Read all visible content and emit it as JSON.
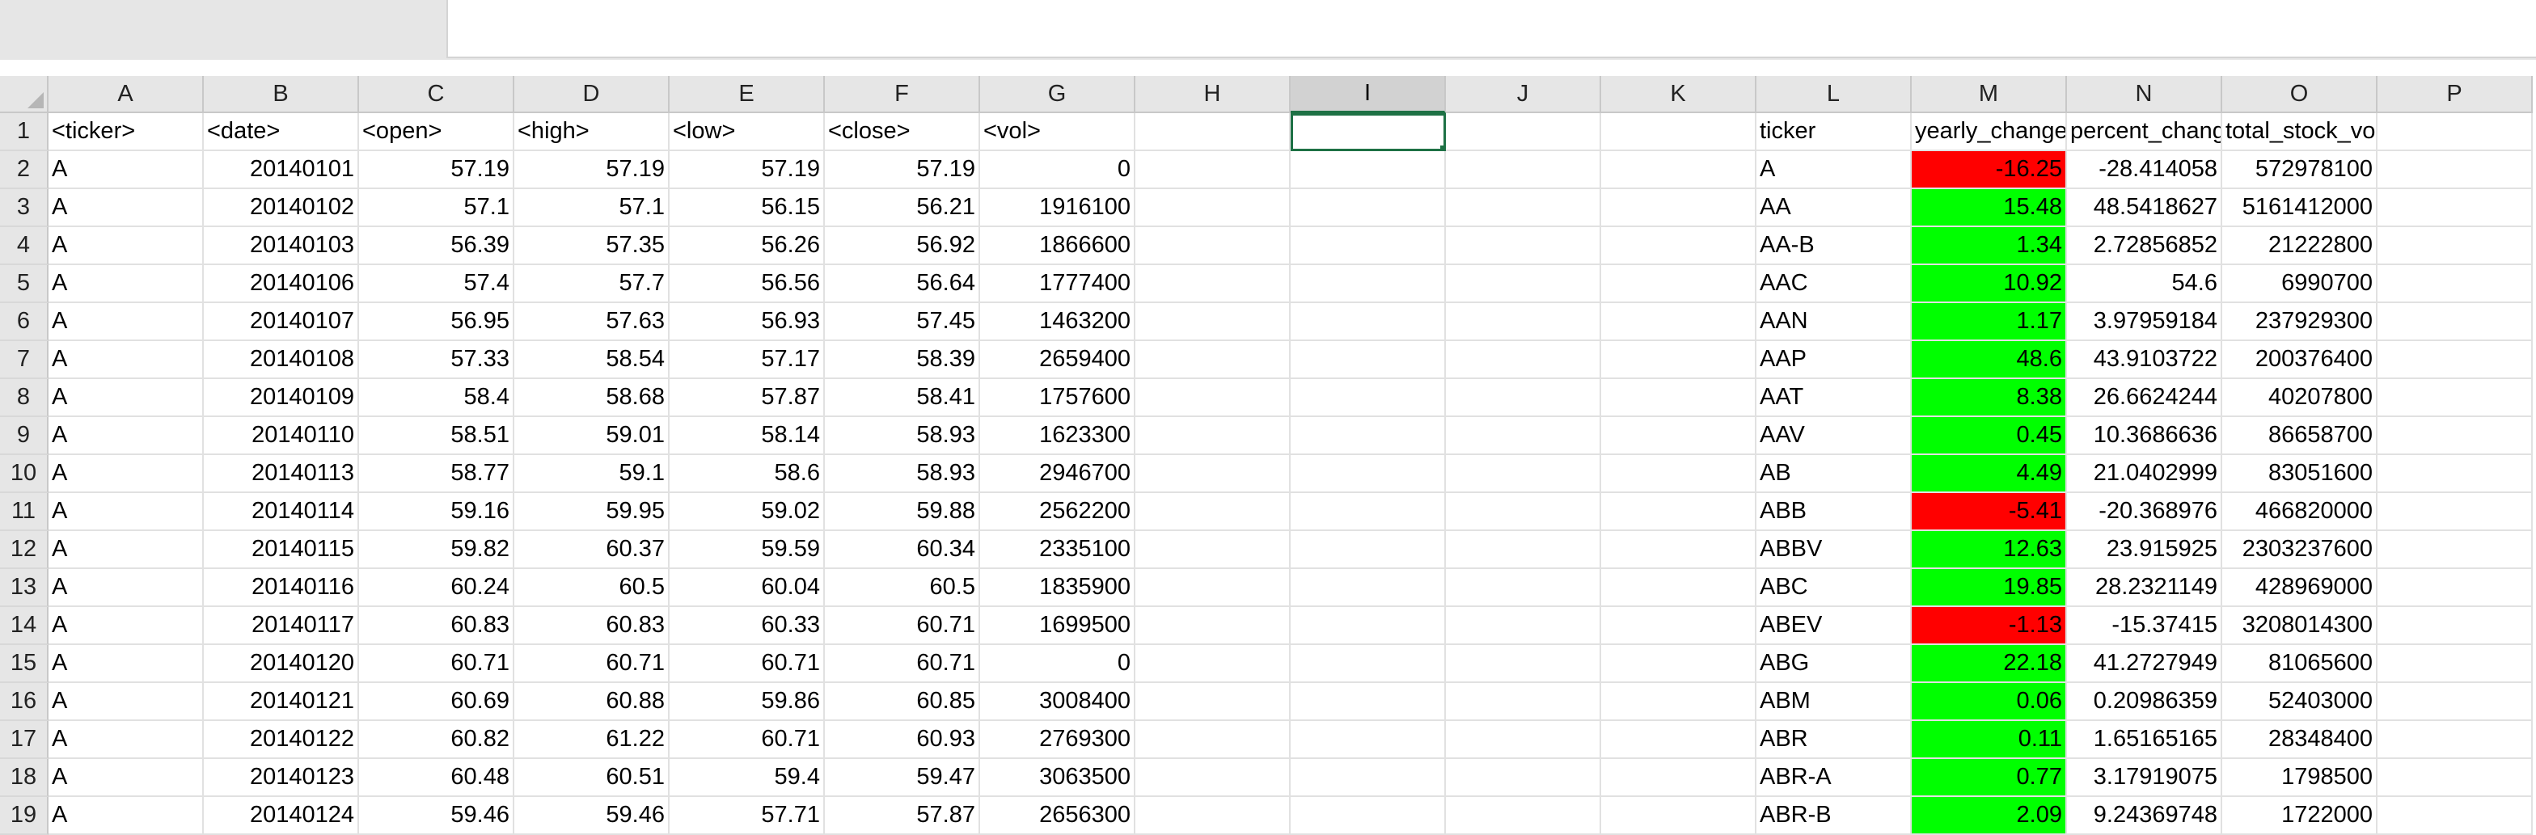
{
  "columns": [
    "A",
    "B",
    "C",
    "D",
    "E",
    "F",
    "G",
    "H",
    "I",
    "J",
    "K",
    "L",
    "M",
    "N",
    "O",
    "P"
  ],
  "selected_column": "I",
  "selected_cell": "I1",
  "row_numbers": [
    "1",
    "2",
    "3",
    "4",
    "5",
    "6",
    "7",
    "8",
    "9",
    "10",
    "11",
    "12",
    "13",
    "14",
    "15",
    "16",
    "17",
    "18",
    "19"
  ],
  "colors": {
    "positive_fill": "#00ff00",
    "negative_fill": "#ff0000",
    "selection": "#1e7145"
  },
  "headers": {
    "A": "<ticker>",
    "B": "<date>",
    "C": "<open>",
    "D": "<high>",
    "E": "<low>",
    "F": "<close>",
    "G": "<vol>",
    "L": "ticker",
    "M": "yearly_change",
    "N": "percent_change",
    "O": "total_stock_vol"
  },
  "raw_rows": [
    [
      "A",
      "20140101",
      "57.19",
      "57.19",
      "57.19",
      "57.19",
      "0"
    ],
    [
      "A",
      "20140102",
      "57.1",
      "57.1",
      "56.15",
      "56.21",
      "1916100"
    ],
    [
      "A",
      "20140103",
      "56.39",
      "57.35",
      "56.26",
      "56.92",
      "1866600"
    ],
    [
      "A",
      "20140106",
      "57.4",
      "57.7",
      "56.56",
      "56.64",
      "1777400"
    ],
    [
      "A",
      "20140107",
      "56.95",
      "57.63",
      "56.93",
      "57.45",
      "1463200"
    ],
    [
      "A",
      "20140108",
      "57.33",
      "58.54",
      "57.17",
      "58.39",
      "2659400"
    ],
    [
      "A",
      "20140109",
      "58.4",
      "58.68",
      "57.87",
      "58.41",
      "1757600"
    ],
    [
      "A",
      "20140110",
      "58.51",
      "59.01",
      "58.14",
      "58.93",
      "1623300"
    ],
    [
      "A",
      "20140113",
      "58.77",
      "59.1",
      "58.6",
      "58.93",
      "2946700"
    ],
    [
      "A",
      "20140114",
      "59.16",
      "59.95",
      "59.02",
      "59.88",
      "2562200"
    ],
    [
      "A",
      "20140115",
      "59.82",
      "60.37",
      "59.59",
      "60.34",
      "2335100"
    ],
    [
      "A",
      "20140116",
      "60.24",
      "60.5",
      "60.04",
      "60.5",
      "1835900"
    ],
    [
      "A",
      "20140117",
      "60.83",
      "60.83",
      "60.33",
      "60.71",
      "1699500"
    ],
    [
      "A",
      "20140120",
      "60.71",
      "60.71",
      "60.71",
      "60.71",
      "0"
    ],
    [
      "A",
      "20140121",
      "60.69",
      "60.88",
      "59.86",
      "60.85",
      "3008400"
    ],
    [
      "A",
      "20140122",
      "60.82",
      "61.22",
      "60.71",
      "60.93",
      "2769300"
    ],
    [
      "A",
      "20140123",
      "60.48",
      "60.51",
      "59.4",
      "59.47",
      "3063500"
    ],
    [
      "A",
      "20140124",
      "59.46",
      "59.46",
      "57.71",
      "57.87",
      "2656300"
    ]
  ],
  "summary_rows": [
    {
      "ticker": "A",
      "yearly_change": "-16.25",
      "percent_change": "-28.414058",
      "total_stock_vol": "572978100",
      "sign": "neg"
    },
    {
      "ticker": "AA",
      "yearly_change": "15.48",
      "percent_change": "48.5418627",
      "total_stock_vol": "5161412000",
      "sign": "pos"
    },
    {
      "ticker": "AA-B",
      "yearly_change": "1.34",
      "percent_change": "2.72856852",
      "total_stock_vol": "21222800",
      "sign": "pos"
    },
    {
      "ticker": "AAC",
      "yearly_change": "10.92",
      "percent_change": "54.6",
      "total_stock_vol": "6990700",
      "sign": "pos"
    },
    {
      "ticker": "AAN",
      "yearly_change": "1.17",
      "percent_change": "3.97959184",
      "total_stock_vol": "237929300",
      "sign": "pos"
    },
    {
      "ticker": "AAP",
      "yearly_change": "48.6",
      "percent_change": "43.9103722",
      "total_stock_vol": "200376400",
      "sign": "pos"
    },
    {
      "ticker": "AAT",
      "yearly_change": "8.38",
      "percent_change": "26.6624244",
      "total_stock_vol": "40207800",
      "sign": "pos"
    },
    {
      "ticker": "AAV",
      "yearly_change": "0.45",
      "percent_change": "10.3686636",
      "total_stock_vol": "86658700",
      "sign": "pos"
    },
    {
      "ticker": "AB",
      "yearly_change": "4.49",
      "percent_change": "21.0402999",
      "total_stock_vol": "83051600",
      "sign": "pos"
    },
    {
      "ticker": "ABB",
      "yearly_change": "-5.41",
      "percent_change": "-20.368976",
      "total_stock_vol": "466820000",
      "sign": "neg"
    },
    {
      "ticker": "ABBV",
      "yearly_change": "12.63",
      "percent_change": "23.915925",
      "total_stock_vol": "2303237600",
      "sign": "pos"
    },
    {
      "ticker": "ABC",
      "yearly_change": "19.85",
      "percent_change": "28.2321149",
      "total_stock_vol": "428969000",
      "sign": "pos"
    },
    {
      "ticker": "ABEV",
      "yearly_change": "-1.13",
      "percent_change": "-15.37415",
      "total_stock_vol": "3208014300",
      "sign": "neg"
    },
    {
      "ticker": "ABG",
      "yearly_change": "22.18",
      "percent_change": "41.2727949",
      "total_stock_vol": "81065600",
      "sign": "pos"
    },
    {
      "ticker": "ABM",
      "yearly_change": "0.06",
      "percent_change": "0.20986359",
      "total_stock_vol": "52403000",
      "sign": "pos"
    },
    {
      "ticker": "ABR",
      "yearly_change": "0.11",
      "percent_change": "1.65165165",
      "total_stock_vol": "28348400",
      "sign": "pos"
    },
    {
      "ticker": "ABR-A",
      "yearly_change": "0.77",
      "percent_change": "3.17919075",
      "total_stock_vol": "1798500",
      "sign": "pos"
    },
    {
      "ticker": "ABR-B",
      "yearly_change": "2.09",
      "percent_change": "9.24369748",
      "total_stock_vol": "1722000",
      "sign": "pos"
    }
  ]
}
